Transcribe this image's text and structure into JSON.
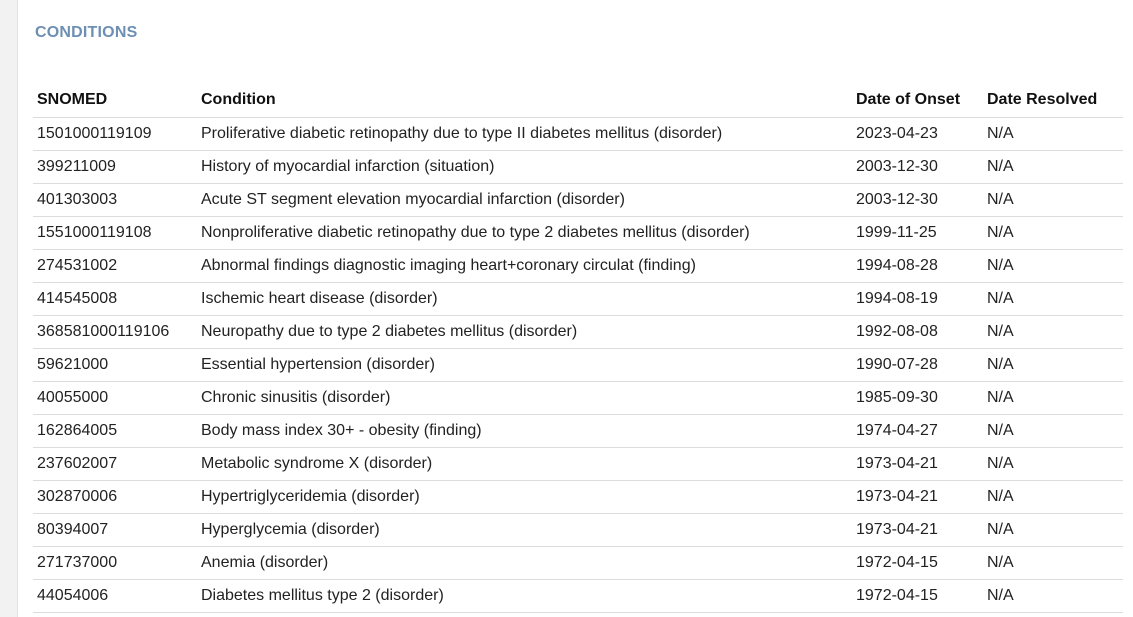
{
  "section": {
    "title": "CONDITIONS"
  },
  "table": {
    "headers": [
      "SNOMED",
      "Condition",
      "Date of Onset",
      "Date Resolved"
    ],
    "rows": [
      [
        "1501000119109",
        "Proliferative diabetic retinopathy due to type II diabetes mellitus (disorder)",
        "2023-04-23",
        "N/A"
      ],
      [
        "399211009",
        "History of myocardial infarction (situation)",
        "2003-12-30",
        "N/A"
      ],
      [
        "401303003",
        "Acute ST segment elevation myocardial infarction (disorder)",
        "2003-12-30",
        "N/A"
      ],
      [
        "1551000119108",
        "Nonproliferative diabetic retinopathy due to type 2 diabetes mellitus (disorder)",
        "1999-11-25",
        "N/A"
      ],
      [
        "274531002",
        "Abnormal findings diagnostic imaging heart+coronary circulat (finding)",
        "1994-08-28",
        "N/A"
      ],
      [
        "414545008",
        "Ischemic heart disease (disorder)",
        "1994-08-19",
        "N/A"
      ],
      [
        "368581000119106",
        "Neuropathy due to type 2 diabetes mellitus (disorder)",
        "1992-08-08",
        "N/A"
      ],
      [
        "59621000",
        "Essential hypertension (disorder)",
        "1990-07-28",
        "N/A"
      ],
      [
        "40055000",
        "Chronic sinusitis (disorder)",
        "1985-09-30",
        "N/A"
      ],
      [
        "162864005",
        "Body mass index 30+ - obesity (finding)",
        "1974-04-27",
        "N/A"
      ],
      [
        "237602007",
        "Metabolic syndrome X (disorder)",
        "1973-04-21",
        "N/A"
      ],
      [
        "302870006",
        "Hypertriglyceridemia (disorder)",
        "1973-04-21",
        "N/A"
      ],
      [
        "80394007",
        "Hyperglycemia (disorder)",
        "1973-04-21",
        "N/A"
      ],
      [
        "271737000",
        "Anemia (disorder)",
        "1972-04-15",
        "N/A"
      ],
      [
        "44054006",
        "Diabetes mellitus type 2 (disorder)",
        "1972-04-15",
        "N/A"
      ]
    ]
  }
}
